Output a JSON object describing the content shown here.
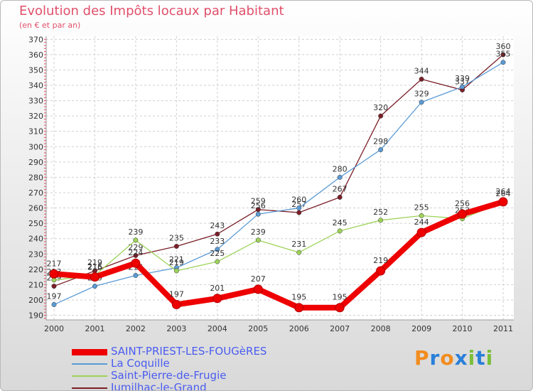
{
  "chart_data": {
    "type": "line",
    "title": "Evolution des Impôts locaux par Habitant",
    "subtitle": "(en € et par an)",
    "x": [
      "2000",
      "2001",
      "2002",
      "2003",
      "2004",
      "2005",
      "2006",
      "2007",
      "2008",
      "2009",
      "2010",
      "2011"
    ],
    "y_ticks": [
      190,
      200,
      210,
      220,
      230,
      240,
      250,
      260,
      270,
      280,
      290,
      300,
      310,
      320,
      330,
      340,
      350,
      360,
      370
    ],
    "ylim": [
      187,
      372
    ],
    "grid": true,
    "series": [
      {
        "name": "SAINT-PRIEST-LES-FOUGèRES",
        "color": "#ee0000",
        "values": [
          217,
          215,
          224,
          197,
          201,
          207,
          195,
          195,
          219,
          244,
          256,
          264
        ]
      },
      {
        "name": "La Coquille",
        "color": "#5b9bd5",
        "values": [
          197,
          209,
          216,
          221,
          233,
          256,
          260,
          280,
          298,
          329,
          339,
          355
        ]
      },
      {
        "name": "Saint-Pierre-de-Frugie",
        "color": "#9ed35a",
        "values": [
          213,
          216,
          239,
          219,
          225,
          239,
          231,
          245,
          252,
          255,
          253,
          264
        ]
      },
      {
        "name": "Jumilhac-le-Grand",
        "color": "#7a1e28",
        "values": [
          209,
          219,
          229,
          235,
          243,
          259,
          257,
          267,
          320,
          344,
          337,
          360
        ]
      }
    ]
  },
  "logo": {
    "text": "Proxiti",
    "letters": [
      "P",
      "r",
      "o",
      "x",
      "i",
      "t",
      "i"
    ],
    "colors": [
      "#f28c1e",
      "#2a7fd8",
      "#f28c1e",
      "#2a7fd8",
      "#7bbf3a",
      "#2a7fd8",
      "#7bbf3a"
    ]
  }
}
